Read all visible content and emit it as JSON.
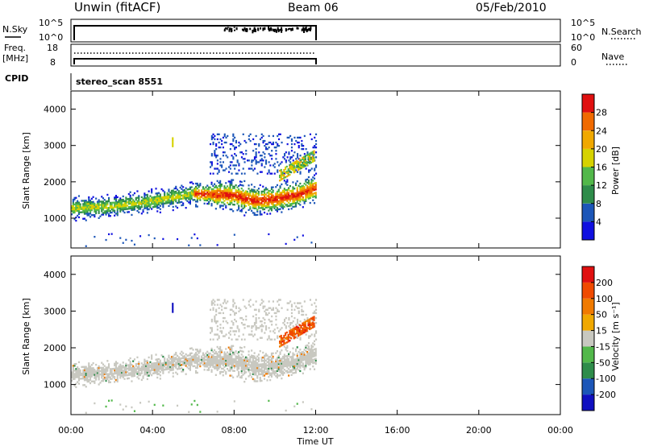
{
  "header": {
    "station": "Unwin (fitACF)",
    "beam": "Beam 06",
    "date": "05/Feb/2010"
  },
  "top_panels": {
    "nsky_label": "N.Sky",
    "nsky_ticks": [
      "10^5",
      "10^0"
    ],
    "nsearch_label": "N.Search",
    "nsearch_ticks": [
      "10^5",
      "10^0"
    ],
    "freq_label_1": "Freq.",
    "freq_label_2": "[MHz]",
    "freq_ticks": [
      "18",
      "8"
    ],
    "nave_label": "Nave",
    "nave_ticks": [
      "60",
      "0"
    ],
    "cpid_label": "CPID",
    "cpid_value": "stereo_scan 8551"
  },
  "colors": {
    "power_scale": [
      "#1010e0",
      "#1c56b8",
      "#2e8c4a",
      "#52b84a",
      "#d6d200",
      "#f0a800",
      "#f06a00",
      "#e01010"
    ],
    "velocity_scale": [
      "#e01010",
      "#f04a00",
      "#f07a00",
      "#f0a800",
      "#c8c8c0",
      "#52b84a",
      "#2e8c4a",
      "#1c56b8",
      "#1010c0"
    ],
    "ground_scatter": "#c8c8c0"
  },
  "chart_data": [
    {
      "type": "heatmap",
      "title": "Power",
      "xlabel": "Time UT",
      "ylabel": "Slant Range [km]",
      "x_ticks": [
        "00:00",
        "04:00",
        "08:00",
        "12:00",
        "16:00",
        "20:00",
        "00:00"
      ],
      "y_ticks": [
        "1000",
        "2000",
        "3000",
        "4000"
      ],
      "xlim_hours": [
        0,
        24
      ],
      "ylim_km": [
        180,
        4500
      ],
      "data_extent_hours": [
        0,
        12
      ],
      "colorbar_label": "Power [dB]",
      "colorbar_ticks": [
        "28",
        "24",
        "20",
        "16",
        "12",
        "8",
        "4"
      ],
      "colorbar_range": [
        0,
        32
      ],
      "main_echo_band": {
        "time_hours": [
          0,
          2,
          4,
          6,
          8,
          9,
          10,
          11,
          12
        ],
        "range_km": [
          1250,
          1300,
          1450,
          1650,
          1600,
          1450,
          1500,
          1600,
          1800
        ],
        "peak_power_db": 26
      }
    },
    {
      "type": "heatmap",
      "title": "Velocity",
      "xlabel": "Time UT",
      "ylabel": "Slant Range [km]",
      "x_ticks": [
        "00:00",
        "04:00",
        "08:00",
        "12:00",
        "16:00",
        "20:00",
        "00:00"
      ],
      "y_ticks": [
        "1000",
        "2000",
        "3000",
        "4000"
      ],
      "xlim_hours": [
        0,
        24
      ],
      "ylim_km": [
        180,
        4500
      ],
      "colorbar_label": "Velocity [m s⁻¹]",
      "colorbar_ticks": [
        "200",
        "100",
        "50",
        "15",
        "-15",
        "-50",
        "-100",
        "-200"
      ],
      "dominant_category": "ground scatter (gray)"
    }
  ]
}
